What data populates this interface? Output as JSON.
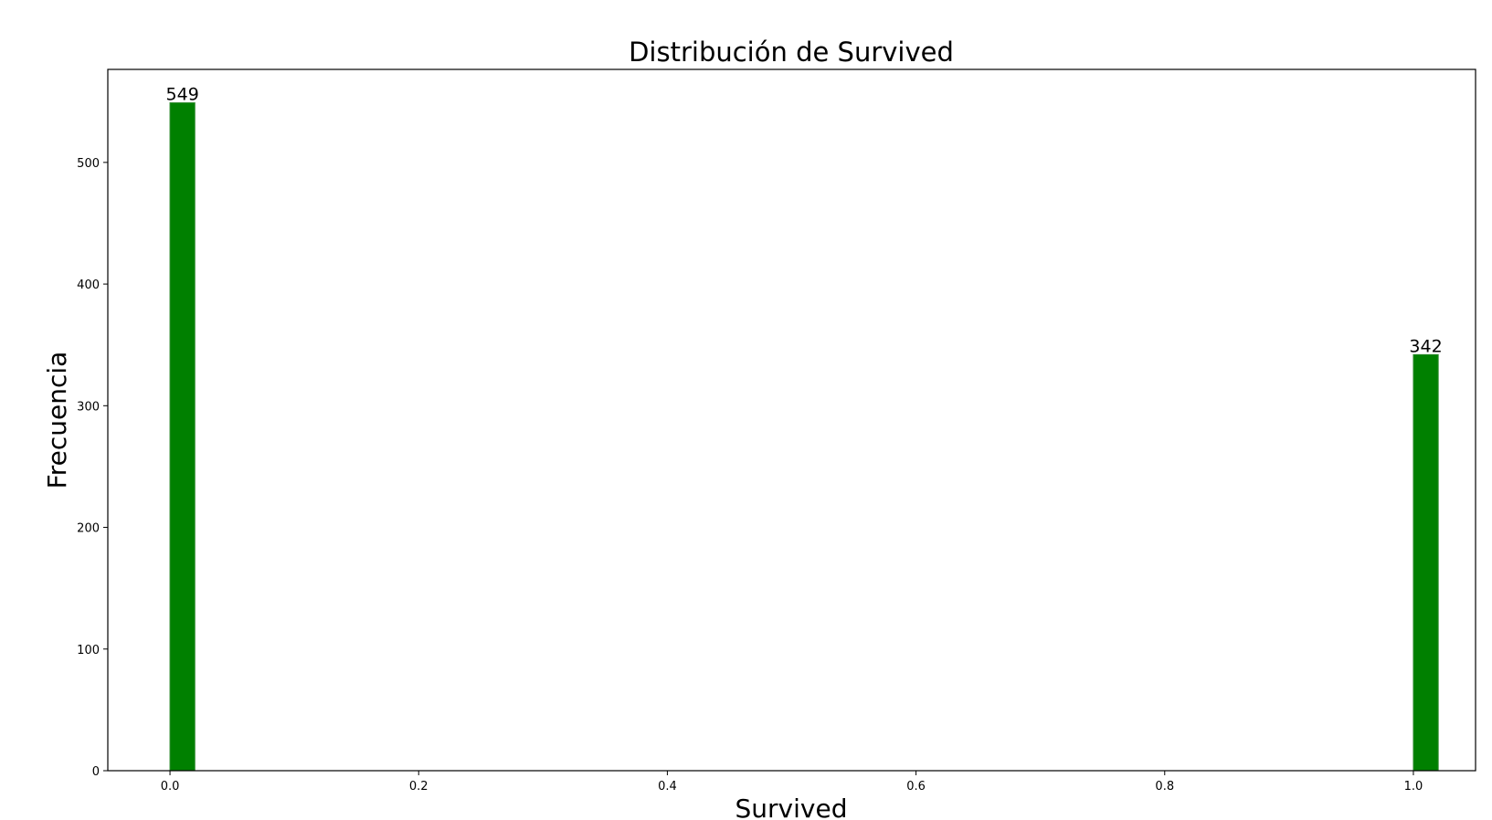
{
  "chart_data": {
    "type": "bar",
    "title": "Distribución de Survived",
    "xlabel": "Survived",
    "ylabel": "Frecuencia",
    "x": [
      0.0,
      1.0
    ],
    "values": [
      549,
      342
    ],
    "data_labels": [
      "549",
      "342"
    ],
    "bin_width": 0.02,
    "xlim": [
      -0.05,
      1.05
    ],
    "ylim": [
      0,
      576.45
    ],
    "x_ticks": [
      0.0,
      0.2,
      0.4,
      0.6,
      0.8,
      1.0
    ],
    "x_tick_labels": [
      "0.0",
      "0.2",
      "0.4",
      "0.6",
      "0.8",
      "1.0"
    ],
    "y_ticks": [
      0,
      100,
      200,
      300,
      400,
      500
    ],
    "y_tick_labels": [
      "0",
      "100",
      "200",
      "300",
      "400",
      "500"
    ],
    "grid": false,
    "legend": "none",
    "colors": {
      "bar": "#008000",
      "bar_edge": "#2e8b2e",
      "axis": "#000000"
    }
  }
}
